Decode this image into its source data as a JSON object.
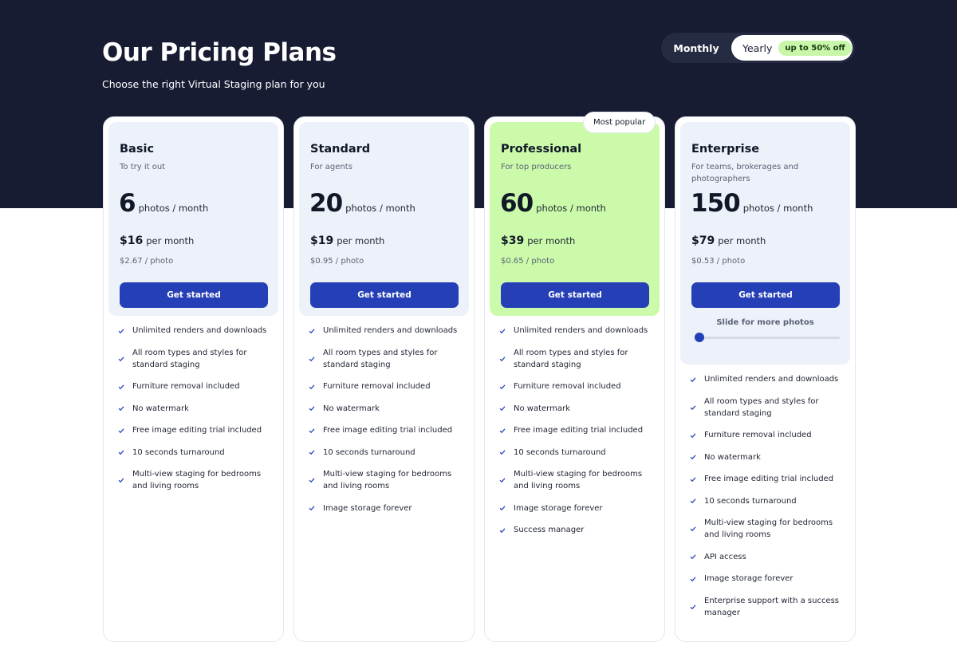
{
  "header": {
    "title": "Our Pricing Plans",
    "subtitle": "Choose the right Virtual Staging plan for you"
  },
  "billing_toggle": {
    "monthly_label": "Monthly",
    "yearly_label": "Yearly",
    "yearly_badge": "up to 50% off",
    "selected": "Yearly"
  },
  "colors": {
    "hero_background": "#181c33",
    "button_primary": "#2540b6",
    "highlight_card": "#cbfbaa",
    "badge_green": "#c9f7a9",
    "card_inner": "#edf1f9"
  },
  "icons": {
    "feature_check": "check-icon"
  },
  "plans": [
    {
      "name": "Basic",
      "description": "To try it out",
      "photos": "6",
      "photos_unit": "photos / month",
      "price": "$16",
      "price_period": "per month",
      "per_photo": "$2.67 / photo",
      "button": "Get started",
      "features": [
        "Unlimited renders and downloads",
        "All room types and styles for standard staging",
        "Furniture removal included",
        "No watermark",
        "Free image editing trial included",
        "10 seconds turnaround",
        "Multi-view staging for bedrooms and living rooms"
      ]
    },
    {
      "name": "Standard",
      "description": "For agents",
      "photos": "20",
      "photos_unit": "photos / month",
      "price": "$19",
      "price_period": "per month",
      "per_photo": "$0.95 / photo",
      "button": "Get started",
      "features": [
        "Unlimited renders and downloads",
        "All room types and styles for standard staging",
        "Furniture removal included",
        "No watermark",
        "Free image editing trial included",
        "10 seconds turnaround",
        "Multi-view staging for bedrooms and living rooms",
        "Image storage forever"
      ]
    },
    {
      "name": "Professional",
      "description": "For top producers",
      "badge": "Most popular",
      "photos": "60",
      "photos_unit": "photos / month",
      "price": "$39",
      "price_period": "per month",
      "per_photo": "$0.65 / photo",
      "button": "Get started",
      "features": [
        "Unlimited renders and downloads",
        "All room types and styles for standard staging",
        "Furniture removal included",
        "No watermark",
        "Free image editing trial included",
        "10 seconds turnaround",
        "Multi-view staging for bedrooms and living rooms",
        "Image storage forever",
        "Success manager"
      ]
    },
    {
      "name": "Enterprise",
      "description": "For teams, brokerages and photographers",
      "photos": "150",
      "photos_unit": "photos / month",
      "price": "$79",
      "price_period": "per month",
      "per_photo": "$0.53 / photo",
      "button": "Get started",
      "slider_label": "Slide for more photos",
      "slider_level": 0,
      "features": [
        "Unlimited renders and downloads",
        "All room types and styles for standard staging",
        "Furniture removal included",
        "No watermark",
        "Free image editing trial included",
        "10 seconds turnaround",
        "Multi-view staging for bedrooms and living rooms",
        "API access",
        "Image storage forever",
        "Enterprise support with a success manager"
      ]
    }
  ]
}
